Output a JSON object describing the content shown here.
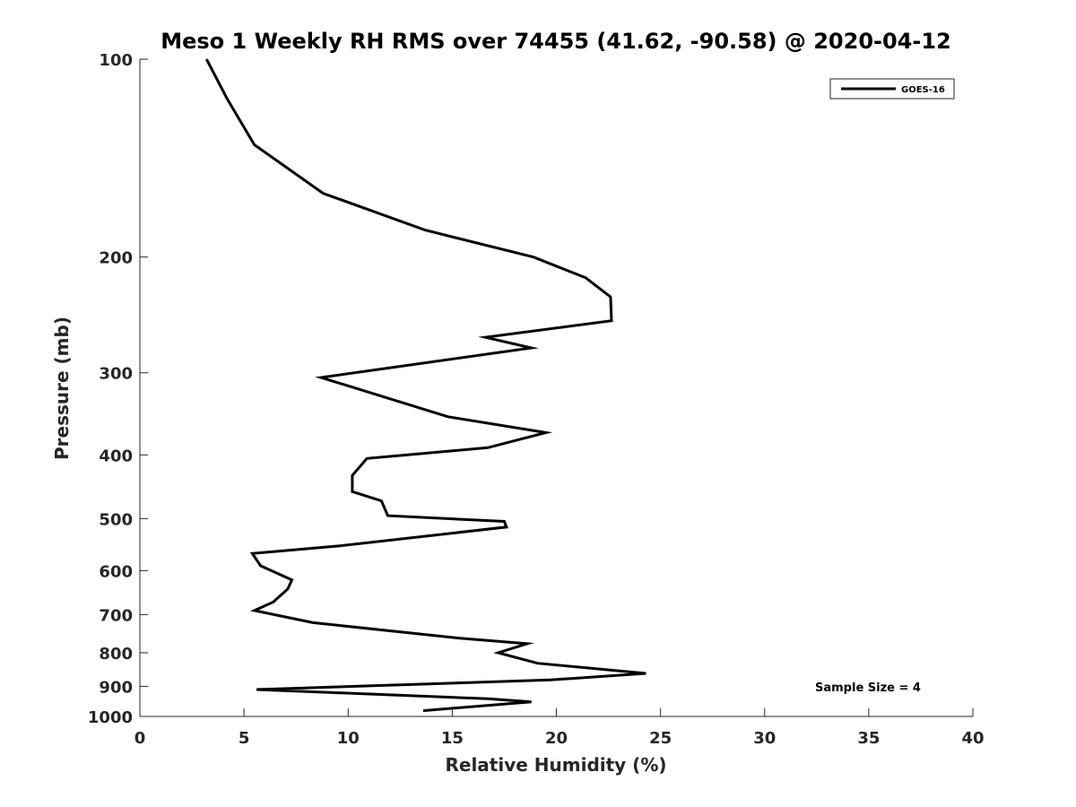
{
  "chart_data": {
    "type": "line",
    "title": "Meso 1 Weekly RH RMS over 74455 (41.62, -90.58) @ 2020-04-12",
    "xlabel": "Relative Humidity (%)",
    "ylabel": "Pressure (mb)",
    "xlim": [
      0,
      40
    ],
    "ylim": [
      100,
      1000
    ],
    "y_scale": "log",
    "y_reversed": true,
    "x_ticks": [
      0,
      5,
      10,
      15,
      20,
      25,
      30,
      35,
      40
    ],
    "x_tick_labels": [
      "0",
      "5",
      "10",
      "15",
      "20",
      "25",
      "30",
      "35",
      "40"
    ],
    "y_ticks": [
      100,
      200,
      300,
      400,
      500,
      600,
      700,
      800,
      900,
      1000
    ],
    "y_tick_labels": [
      "100",
      "200",
      "300",
      "400",
      "500",
      "600",
      "700",
      "800",
      "900",
      "1000"
    ],
    "grid": false,
    "legend_position": "top-right",
    "series": [
      {
        "name": "GOES-16",
        "color": "#000000",
        "x": [
          3.2,
          4.2,
          5.5,
          8.8,
          13.7,
          18.9,
          21.4,
          22.6,
          22.65,
          16.6,
          18.8,
          8.7,
          14.8,
          19.5,
          16.7,
          10.9,
          10.2,
          10.2,
          11.6,
          11.9,
          17.5,
          17.6,
          9.6,
          5.4,
          5.8,
          7.3,
          7.1,
          6.4,
          5.5,
          8.3,
          15.3,
          18.6,
          17.2,
          19.1,
          24.3,
          19.7,
          5.6,
          16.7,
          18.8,
          13.6
        ],
        "y": [
          100,
          115,
          135,
          160,
          182,
          200,
          215,
          230,
          250,
          265,
          275,
          305,
          350,
          370,
          390,
          405,
          430,
          455,
          470,
          495,
          505,
          515,
          550,
          565,
          590,
          620,
          640,
          670,
          690,
          720,
          760,
          775,
          800,
          830,
          860,
          880,
          910,
          940,
          950,
          980
        ]
      }
    ],
    "annotations": [
      "Sample Size = 4"
    ]
  }
}
